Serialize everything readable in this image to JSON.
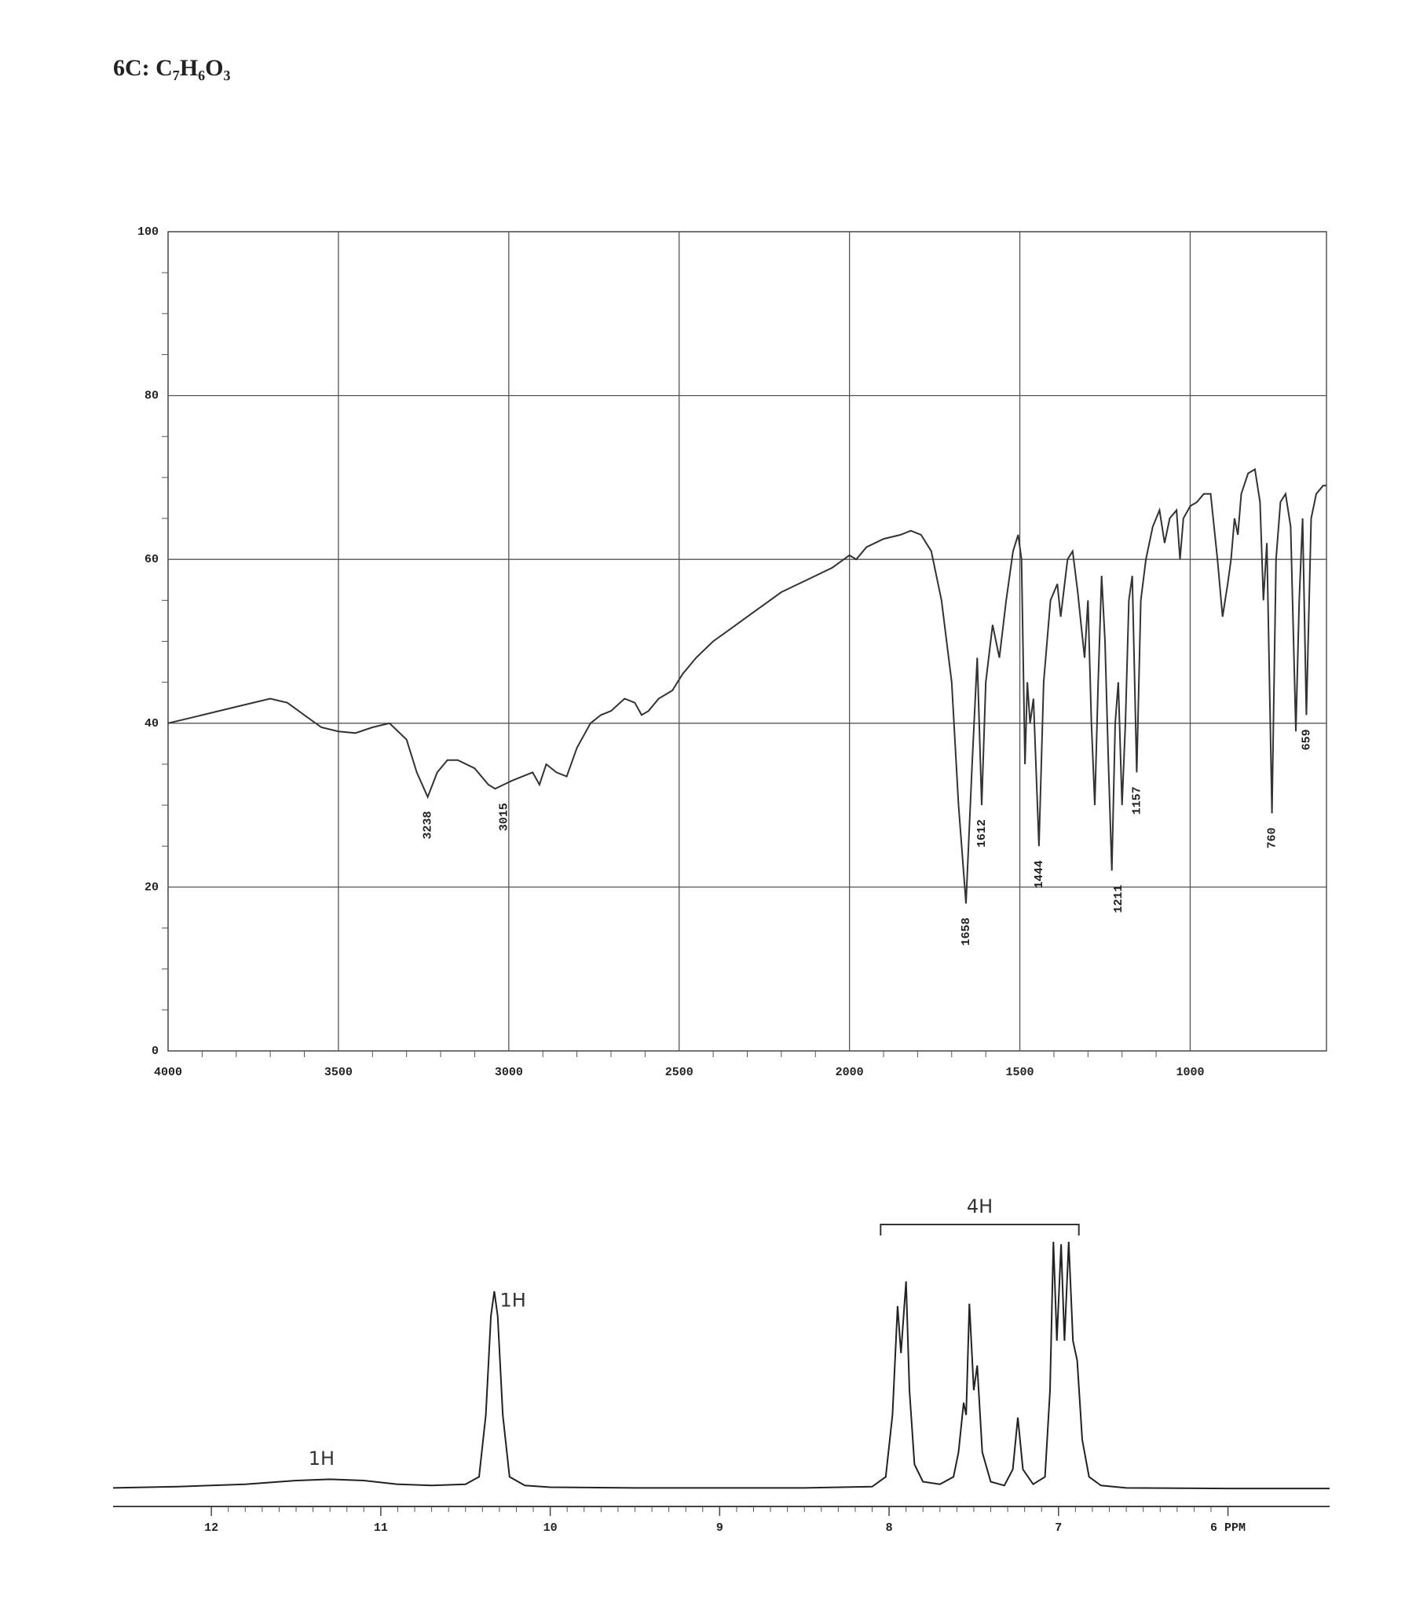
{
  "title": "6C: C₇H₆O₃",
  "chart_data": [
    {
      "type": "line",
      "color": "#333333",
      "grid": true,
      "xlim": [
        4000,
        600
      ],
      "xticks": [
        4000,
        3500,
        3000,
        2500,
        2000,
        1500,
        1000
      ],
      "ylim": [
        0,
        100
      ],
      "yticks": [
        0,
        20,
        40,
        60,
        80,
        100
      ],
      "x": [
        4000,
        3900,
        3800,
        3700,
        3650,
        3600,
        3550,
        3500,
        3450,
        3400,
        3350,
        3300,
        3270,
        3238,
        3210,
        3180,
        3150,
        3100,
        3060,
        3040,
        3015,
        2990,
        2960,
        2930,
        2910,
        2890,
        2860,
        2830,
        2800,
        2760,
        2730,
        2700,
        2660,
        2630,
        2610,
        2590,
        2560,
        2520,
        2490,
        2450,
        2400,
        2350,
        2300,
        2250,
        2200,
        2150,
        2100,
        2050,
        2000,
        1980,
        1950,
        1900,
        1850,
        1820,
        1790,
        1760,
        1730,
        1700,
        1680,
        1658,
        1640,
        1625,
        1612,
        1600,
        1580,
        1560,
        1540,
        1520,
        1505,
        1495,
        1485,
        1478,
        1470,
        1460,
        1444,
        1430,
        1410,
        1390,
        1380,
        1360,
        1345,
        1330,
        1320,
        1310,
        1300,
        1290,
        1280,
        1270,
        1260,
        1250,
        1240,
        1230,
        1220,
        1211,
        1200,
        1190,
        1180,
        1170,
        1157,
        1145,
        1130,
        1110,
        1090,
        1075,
        1060,
        1040,
        1030,
        1020,
        1000,
        980,
        960,
        940,
        920,
        905,
        890,
        880,
        870,
        860,
        850,
        830,
        810,
        795,
        785,
        775,
        760,
        748,
        735,
        720,
        705,
        690,
        680,
        670,
        659,
        645,
        630,
        610,
        600
      ],
      "values": [
        40,
        41,
        42,
        43,
        42.5,
        41,
        39.5,
        39,
        38.8,
        39.5,
        40,
        38,
        34,
        31,
        34,
        35.5,
        35.5,
        34.5,
        32.5,
        32,
        32.5,
        33,
        33.5,
        34,
        32.5,
        35,
        34,
        33.5,
        37,
        40,
        41,
        41.5,
        43,
        42.5,
        41,
        41.5,
        43,
        44,
        46,
        48,
        50,
        51.5,
        53,
        54.5,
        56,
        57,
        58,
        59,
        60.5,
        60,
        61.5,
        62.5,
        63,
        63.5,
        63,
        61,
        55,
        45,
        30,
        18,
        35,
        48,
        30,
        45,
        52,
        48,
        55,
        61,
        63,
        60,
        35,
        45,
        40,
        43,
        25,
        45,
        55,
        57,
        53,
        60,
        61,
        56,
        52,
        48,
        55,
        40,
        30,
        45,
        58,
        50,
        35,
        22,
        40,
        45,
        30,
        40,
        55,
        58,
        34,
        55,
        60,
        64,
        66,
        62,
        65,
        66,
        60,
        65,
        66.5,
        67,
        68,
        68,
        60,
        53,
        57,
        60,
        65,
        63,
        68,
        70.5,
        71,
        67,
        55,
        62,
        29,
        60,
        67,
        68,
        64,
        39,
        55,
        65,
        41,
        65,
        68,
        69,
        69
      ],
      "peaks": [
        {
          "x": 3238,
          "y": 31
        },
        {
          "x": 3015,
          "y": 32
        },
        {
          "x": 1658,
          "y": 18
        },
        {
          "x": 1612,
          "y": 30
        },
        {
          "x": 1444,
          "y": 25
        },
        {
          "x": 1211,
          "y": 22
        },
        {
          "x": 1157,
          "y": 34
        },
        {
          "x": 760,
          "y": 29
        },
        {
          "x": 659,
          "y": 41
        }
      ]
    },
    {
      "type": "line",
      "color": "#222222",
      "grid": false,
      "xlim": [
        12.58,
        5.4
      ],
      "xticks": [
        12,
        11,
        10,
        9,
        8,
        7,
        {
          "value": 6,
          "label": "6 PPM"
        }
      ],
      "ylim": [
        0,
        100
      ],
      "x": [
        12.58,
        12.2,
        11.8,
        11.5,
        11.3,
        11.1,
        10.9,
        10.7,
        10.5,
        10.42,
        10.38,
        10.35,
        10.33,
        10.31,
        10.28,
        10.24,
        10.15,
        10.0,
        9.5,
        9.0,
        8.5,
        8.1,
        8.02,
        7.98,
        7.95,
        7.93,
        7.9,
        7.88,
        7.85,
        7.8,
        7.7,
        7.62,
        7.59,
        7.56,
        7.545,
        7.526,
        7.5,
        7.48,
        7.45,
        7.4,
        7.32,
        7.27,
        7.24,
        7.21,
        7.15,
        7.08,
        7.05,
        7.03,
        7.01,
        6.985,
        6.965,
        6.94,
        6.915,
        6.89,
        6.86,
        6.82,
        6.75,
        6.6,
        6.0,
        5.4
      ],
      "values": [
        0.5,
        1,
        2,
        3.5,
        4,
        3.5,
        2,
        1.5,
        2,
        5,
        30,
        70,
        80,
        70,
        30,
        5,
        1.5,
        0.8,
        0.5,
        0.5,
        0.5,
        1,
        5,
        30,
        74,
        55,
        84,
        40,
        10,
        3,
        2,
        5,
        15,
        35,
        30,
        75,
        40,
        50,
        15,
        3,
        1.5,
        8,
        29,
        8,
        2,
        5,
        40,
        100,
        60,
        99,
        60,
        100,
        60,
        52,
        20,
        5,
        1.5,
        0.5,
        0.3,
        0.3
      ],
      "annotations": [
        {
          "text": "1H",
          "x": 11.35,
          "y": 12
        },
        {
          "text": "1H",
          "x": 10.22,
          "y": 76
        },
        {
          "text": "4H",
          "x": [
            8.05,
            6.88
          ],
          "y": 107
        }
      ]
    }
  ]
}
